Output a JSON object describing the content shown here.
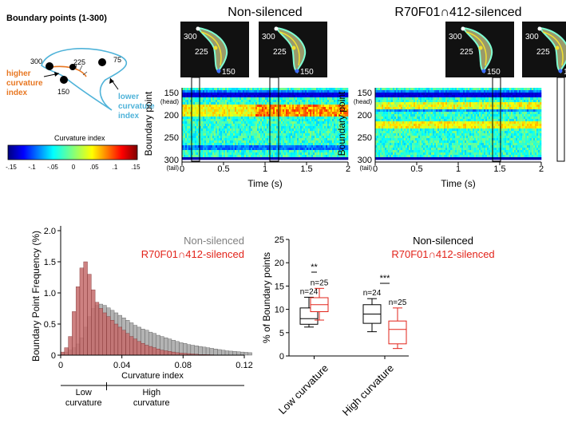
{
  "panelA": {
    "title": "Boundary points (1-300)",
    "p300": "300",
    "p225": "225",
    "p150": "150",
    "p75": "75",
    "higher_label": [
      "higher",
      "curvature",
      "index"
    ],
    "lower_label": [
      "lower",
      "curvature",
      "index"
    ],
    "colorbar_title": "Curvature index",
    "colorbar_ticks": [
      "-.15",
      "-.1",
      "-.05",
      "0",
      ".05",
      ".1",
      ".15"
    ]
  },
  "heatmaps": [
    {
      "title": "Non-silenced",
      "thumb_labels": [
        [
          "300",
          "225",
          "150"
        ],
        [
          "300",
          "225",
          "150"
        ]
      ]
    },
    {
      "title": "R70F01∩412-silenced",
      "thumb_labels": [
        [
          "300",
          "225",
          "150"
        ],
        [
          "300",
          "225",
          "150"
        ]
      ]
    }
  ],
  "heatmap_axes": {
    "ylabel": "Boundary point",
    "yticks": [
      "150",
      "200",
      "250",
      "300"
    ],
    "head": "(head)",
    "tail": "(tail)",
    "xticks": [
      "0",
      "0.5",
      "1",
      "1.5",
      "2"
    ],
    "xlabel": "Time (s)"
  },
  "histogram": {
    "ylabel": "Boundary Point Frequency (%)",
    "xlabel": "Curvature index",
    "legend": [
      "Non-silenced",
      "R70F01∩412-silenced"
    ],
    "yticks": [
      "0",
      "0.5",
      "1.0",
      "1.5",
      "2.0"
    ],
    "xticks": [
      "0",
      "0.04",
      "0.08",
      "0.12"
    ],
    "low_label": [
      "Low",
      "curvature"
    ],
    "high_label": [
      "High",
      "curvature"
    ]
  },
  "boxplot": {
    "ylabel": "% of Boundary points",
    "legend": [
      "Non-silenced",
      "R70F01∩412-silenced"
    ],
    "yticks": [
      "0",
      "5",
      "10",
      "15",
      "20",
      "25"
    ],
    "categories": [
      "Low curvature",
      "High curvature"
    ],
    "n_labels": [
      "n=24",
      "n=25",
      "n=24",
      "n=25"
    ],
    "sig": [
      "**",
      "***"
    ]
  },
  "colors": {
    "nonsilenced": "#7f7f7f",
    "silenced": "#e2231a",
    "hist_silenced_fill": "#c46b6b",
    "hist_non_fill": "#b3b3b3",
    "higher": "#e87722",
    "lower": "#4fb3d9"
  },
  "chart_data": [
    {
      "type": "histogram",
      "xlabel": "Curvature index",
      "ylabel": "Boundary Point Frequency (%)",
      "xlim": [
        0,
        0.12
      ],
      "ylim": [
        0,
        2.0
      ],
      "bin_width": 0.0025,
      "series": [
        {
          "name": "Non-silenced",
          "values": [
            0.02,
            0.05,
            0.08,
            0.12,
            0.18,
            0.28,
            0.45,
            0.62,
            0.75,
            0.8,
            0.82,
            0.8,
            0.76,
            0.72,
            0.68,
            0.64,
            0.6,
            0.56,
            0.52,
            0.48,
            0.45,
            0.42,
            0.4,
            0.37,
            0.35,
            0.32,
            0.3,
            0.28,
            0.26,
            0.24,
            0.22,
            0.2,
            0.19,
            0.17,
            0.16,
            0.15,
            0.14,
            0.13,
            0.12,
            0.11,
            0.1,
            0.09,
            0.08,
            0.07,
            0.065,
            0.06,
            0.055,
            0.05,
            0.045,
            0.04
          ]
        },
        {
          "name": "R70F01∩412-silenced",
          "values": [
            0.05,
            0.12,
            0.3,
            0.7,
            1.1,
            1.4,
            1.5,
            1.3,
            1.05,
            0.85,
            0.75,
            0.68,
            0.62,
            0.56,
            0.5,
            0.45,
            0.4,
            0.35,
            0.3,
            0.26,
            0.22,
            0.19,
            0.16,
            0.14,
            0.12,
            0.1,
            0.08,
            0.07,
            0.06,
            0.05,
            0.04,
            0.035,
            0.03,
            0.025,
            0.02,
            0.015,
            0.01,
            0.01,
            0.008,
            0.006
          ]
        }
      ]
    },
    {
      "type": "box",
      "ylabel": "% of Boundary points",
      "ylim": [
        0,
        25
      ],
      "categories": [
        "Low curvature",
        "High curvature"
      ],
      "series": [
        {
          "name": "Non-silenced",
          "boxes": [
            {
              "min": 6.2,
              "q1": 6.8,
              "median": 8.0,
              "q3": 10.3,
              "max": 12.6
            },
            {
              "min": 5.2,
              "q1": 7.0,
              "median": 9.0,
              "q3": 11.0,
              "max": 12.3
            }
          ]
        },
        {
          "name": "R70F01∩412-silenced",
          "boxes": [
            {
              "min": 7.7,
              "q1": 9.5,
              "median": 11.0,
              "q3": 12.5,
              "max": 14.5
            },
            {
              "min": 1.6,
              "q1": 2.6,
              "median": 5.7,
              "q3": 7.5,
              "max": 10.3
            }
          ]
        }
      ]
    }
  ]
}
